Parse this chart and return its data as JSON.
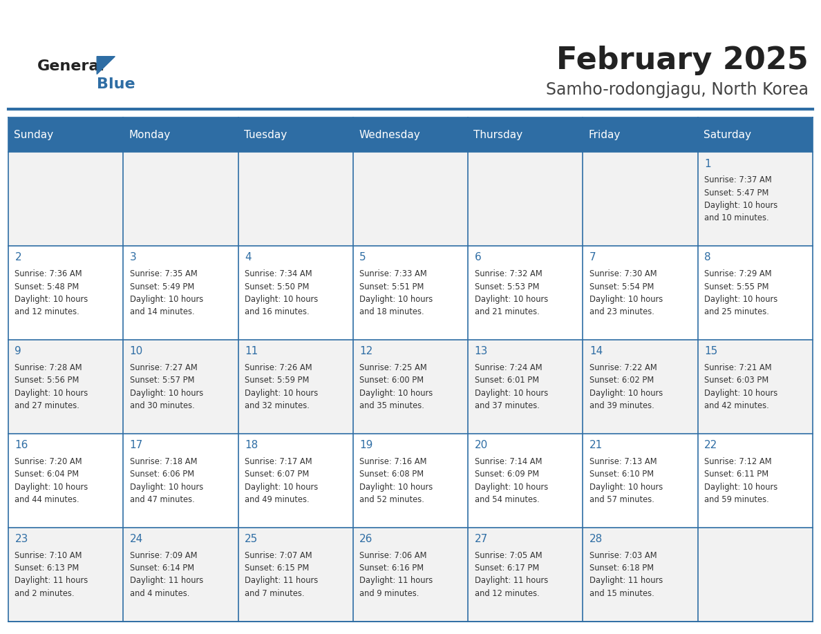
{
  "title": "February 2025",
  "subtitle": "Samho-rodongjagu, North Korea",
  "days_of_week": [
    "Sunday",
    "Monday",
    "Tuesday",
    "Wednesday",
    "Thursday",
    "Friday",
    "Saturday"
  ],
  "header_bg": "#2E6DA4",
  "header_text": "#FFFFFF",
  "cell_bg_odd": "#F2F2F2",
  "cell_bg_even": "#FFFFFF",
  "border_color": "#2E6DA4",
  "day_num_color": "#2E6DA4",
  "info_text_color": "#333333",
  "title_color": "#222222",
  "subtitle_color": "#444444",
  "logo_general_color": "#222222",
  "logo_blue_color": "#2E6DA4",
  "calendar_data": [
    [
      null,
      null,
      null,
      null,
      null,
      null,
      {
        "day": 1,
        "sunrise": "7:37 AM",
        "sunset": "5:47 PM",
        "daylight_line1": "10 hours",
        "daylight_line2": "and 10 minutes."
      }
    ],
    [
      {
        "day": 2,
        "sunrise": "7:36 AM",
        "sunset": "5:48 PM",
        "daylight_line1": "10 hours",
        "daylight_line2": "and 12 minutes."
      },
      {
        "day": 3,
        "sunrise": "7:35 AM",
        "sunset": "5:49 PM",
        "daylight_line1": "10 hours",
        "daylight_line2": "and 14 minutes."
      },
      {
        "day": 4,
        "sunrise": "7:34 AM",
        "sunset": "5:50 PM",
        "daylight_line1": "10 hours",
        "daylight_line2": "and 16 minutes."
      },
      {
        "day": 5,
        "sunrise": "7:33 AM",
        "sunset": "5:51 PM",
        "daylight_line1": "10 hours",
        "daylight_line2": "and 18 minutes."
      },
      {
        "day": 6,
        "sunrise": "7:32 AM",
        "sunset": "5:53 PM",
        "daylight_line1": "10 hours",
        "daylight_line2": "and 21 minutes."
      },
      {
        "day": 7,
        "sunrise": "7:30 AM",
        "sunset": "5:54 PM",
        "daylight_line1": "10 hours",
        "daylight_line2": "and 23 minutes."
      },
      {
        "day": 8,
        "sunrise": "7:29 AM",
        "sunset": "5:55 PM",
        "daylight_line1": "10 hours",
        "daylight_line2": "and 25 minutes."
      }
    ],
    [
      {
        "day": 9,
        "sunrise": "7:28 AM",
        "sunset": "5:56 PM",
        "daylight_line1": "10 hours",
        "daylight_line2": "and 27 minutes."
      },
      {
        "day": 10,
        "sunrise": "7:27 AM",
        "sunset": "5:57 PM",
        "daylight_line1": "10 hours",
        "daylight_line2": "and 30 minutes."
      },
      {
        "day": 11,
        "sunrise": "7:26 AM",
        "sunset": "5:59 PM",
        "daylight_line1": "10 hours",
        "daylight_line2": "and 32 minutes."
      },
      {
        "day": 12,
        "sunrise": "7:25 AM",
        "sunset": "6:00 PM",
        "daylight_line1": "10 hours",
        "daylight_line2": "and 35 minutes."
      },
      {
        "day": 13,
        "sunrise": "7:24 AM",
        "sunset": "6:01 PM",
        "daylight_line1": "10 hours",
        "daylight_line2": "and 37 minutes."
      },
      {
        "day": 14,
        "sunrise": "7:22 AM",
        "sunset": "6:02 PM",
        "daylight_line1": "10 hours",
        "daylight_line2": "and 39 minutes."
      },
      {
        "day": 15,
        "sunrise": "7:21 AM",
        "sunset": "6:03 PM",
        "daylight_line1": "10 hours",
        "daylight_line2": "and 42 minutes."
      }
    ],
    [
      {
        "day": 16,
        "sunrise": "7:20 AM",
        "sunset": "6:04 PM",
        "daylight_line1": "10 hours",
        "daylight_line2": "and 44 minutes."
      },
      {
        "day": 17,
        "sunrise": "7:18 AM",
        "sunset": "6:06 PM",
        "daylight_line1": "10 hours",
        "daylight_line2": "and 47 minutes."
      },
      {
        "day": 18,
        "sunrise": "7:17 AM",
        "sunset": "6:07 PM",
        "daylight_line1": "10 hours",
        "daylight_line2": "and 49 minutes."
      },
      {
        "day": 19,
        "sunrise": "7:16 AM",
        "sunset": "6:08 PM",
        "daylight_line1": "10 hours",
        "daylight_line2": "and 52 minutes."
      },
      {
        "day": 20,
        "sunrise": "7:14 AM",
        "sunset": "6:09 PM",
        "daylight_line1": "10 hours",
        "daylight_line2": "and 54 minutes."
      },
      {
        "day": 21,
        "sunrise": "7:13 AM",
        "sunset": "6:10 PM",
        "daylight_line1": "10 hours",
        "daylight_line2": "and 57 minutes."
      },
      {
        "day": 22,
        "sunrise": "7:12 AM",
        "sunset": "6:11 PM",
        "daylight_line1": "10 hours",
        "daylight_line2": "and 59 minutes."
      }
    ],
    [
      {
        "day": 23,
        "sunrise": "7:10 AM",
        "sunset": "6:13 PM",
        "daylight_line1": "11 hours",
        "daylight_line2": "and 2 minutes."
      },
      {
        "day": 24,
        "sunrise": "7:09 AM",
        "sunset": "6:14 PM",
        "daylight_line1": "11 hours",
        "daylight_line2": "and 4 minutes."
      },
      {
        "day": 25,
        "sunrise": "7:07 AM",
        "sunset": "6:15 PM",
        "daylight_line1": "11 hours",
        "daylight_line2": "and 7 minutes."
      },
      {
        "day": 26,
        "sunrise": "7:06 AM",
        "sunset": "6:16 PM",
        "daylight_line1": "11 hours",
        "daylight_line2": "and 9 minutes."
      },
      {
        "day": 27,
        "sunrise": "7:05 AM",
        "sunset": "6:17 PM",
        "daylight_line1": "11 hours",
        "daylight_line2": "and 12 minutes."
      },
      {
        "day": 28,
        "sunrise": "7:03 AM",
        "sunset": "6:18 PM",
        "daylight_line1": "11 hours",
        "daylight_line2": "and 15 minutes."
      },
      null
    ]
  ],
  "figsize": [
    11.88,
    9.18
  ],
  "dpi": 100
}
